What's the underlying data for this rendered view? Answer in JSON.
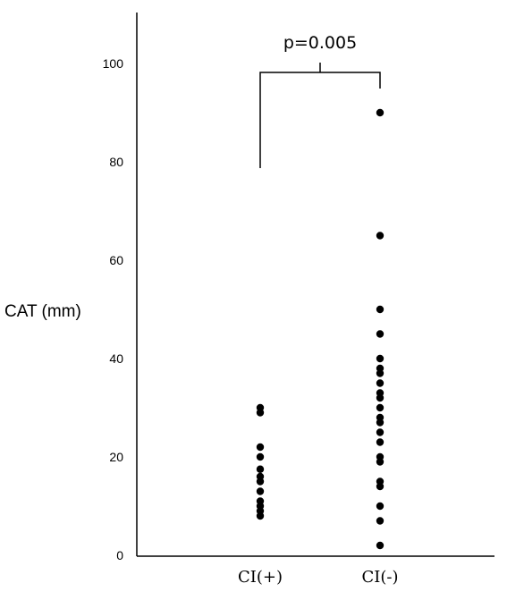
{
  "chart_data": {
    "type": "scatter",
    "title": "",
    "xlabel": "",
    "ylabel": "CAT (mm)",
    "ylim": [
      0,
      110
    ],
    "yticks": [
      0,
      20,
      40,
      60,
      80,
      100
    ],
    "grid": false,
    "categories": [
      "CI(+)",
      "CI(-)"
    ],
    "series": [
      {
        "category": "CI(+)",
        "values": [
          30,
          29,
          22,
          20,
          17.5,
          16,
          15,
          13,
          11,
          10,
          9,
          8
        ]
      },
      {
        "category": "CI(-)",
        "values": [
          90,
          65,
          50,
          45,
          40,
          38,
          37,
          35,
          33,
          32,
          30,
          28,
          27,
          25,
          23,
          20,
          19,
          15,
          14,
          10,
          7,
          2
        ]
      }
    ],
    "annotations": [
      {
        "text": "p=0.005",
        "type": "significance-bracket",
        "between": [
          "CI(+)",
          "CI(-)"
        ]
      }
    ],
    "colors": {
      "points": "#000000",
      "axes": "#000000"
    }
  }
}
